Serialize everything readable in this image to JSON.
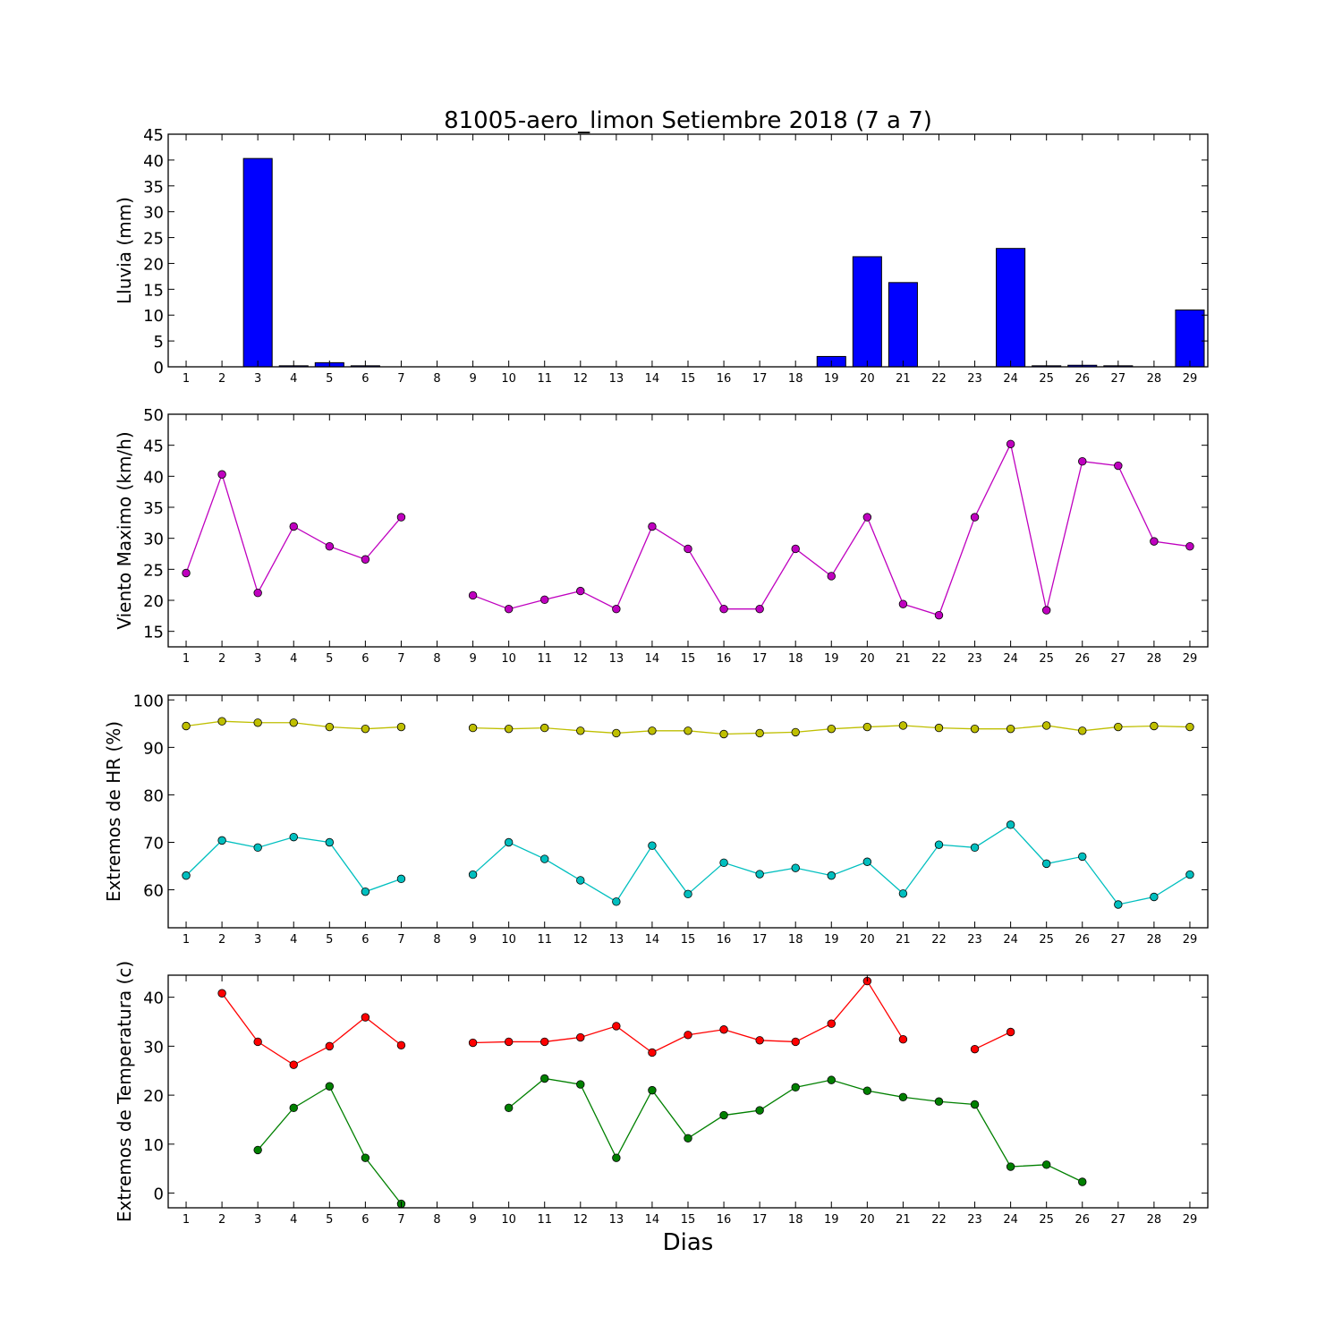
{
  "chart_data": {
    "title": "81005-aero_limon Setiembre 2018  (7 a 7)",
    "xlabel": "Dias",
    "days": [
      1,
      2,
      3,
      4,
      5,
      6,
      7,
      8,
      9,
      10,
      11,
      12,
      13,
      14,
      15,
      16,
      17,
      18,
      19,
      20,
      21,
      22,
      23,
      24,
      25,
      26,
      27,
      28,
      29
    ],
    "panels": [
      {
        "type": "bar",
        "ylabel": "Lluvia (mm)",
        "ylim": [
          0,
          45
        ],
        "yticks": [
          0,
          5,
          10,
          15,
          20,
          25,
          30,
          35,
          40,
          45
        ],
        "series": [
          {
            "color": "#0000ff",
            "values": [
              0,
              0,
              40.3,
              0.2,
              0.8,
              0.2,
              0,
              0,
              0,
              0,
              0,
              0,
              0,
              0,
              0,
              0,
              0,
              0,
              2.0,
              21.3,
              16.3,
              0,
              0,
              22.9,
              0.2,
              0.3,
              0.2,
              0,
              11.0
            ]
          }
        ]
      },
      {
        "type": "line",
        "ylabel": "Viento Maximo (km/h)",
        "ylim": [
          12.5,
          50
        ],
        "yticks": [
          15,
          20,
          25,
          30,
          35,
          40,
          45,
          50
        ],
        "series": [
          {
            "color": "#bf00bf",
            "values": [
              24.4,
              40.3,
              21.2,
              31.9,
              28.7,
              26.6,
              33.4,
              null,
              20.8,
              18.6,
              20.1,
              21.5,
              18.6,
              31.9,
              28.3,
              18.6,
              18.6,
              28.3,
              23.9,
              33.4,
              19.4,
              17.6,
              33.4,
              45.2,
              18.4,
              42.4,
              41.7,
              29.5,
              28.7
            ]
          }
        ]
      },
      {
        "type": "line",
        "ylabel": "Extremos de HR (%)",
        "ylim": [
          52,
          101
        ],
        "yticks": [
          60,
          70,
          80,
          90,
          100
        ],
        "series": [
          {
            "color": "#bfbf00",
            "values": [
              94.5,
              95.5,
              95.2,
              95.2,
              94.3,
              93.9,
              94.3,
              null,
              94.1,
              93.9,
              94.1,
              93.5,
              93.0,
              93.5,
              93.5,
              92.8,
              93.0,
              93.2,
              93.9,
              94.3,
              94.6,
              94.1,
              93.9,
              93.9,
              94.6,
              93.5,
              94.3,
              94.5,
              94.3
            ]
          },
          {
            "color": "#00bfbf",
            "values": [
              63.0,
              70.4,
              68.9,
              71.1,
              70.0,
              59.6,
              62.3,
              null,
              63.2,
              70.0,
              66.5,
              62.0,
              57.5,
              69.3,
              59.1,
              65.7,
              63.3,
              64.6,
              63.0,
              65.9,
              59.2,
              69.5,
              68.9,
              73.7,
              65.5,
              67.0,
              56.9,
              58.5,
              63.2
            ]
          }
        ]
      },
      {
        "type": "line",
        "ylabel": "Extremos de Temperatura (c)",
        "ylim": [
          -3,
          44.5
        ],
        "yticks": [
          0,
          10,
          20,
          30,
          40
        ],
        "series": [
          {
            "color": "#ff0000",
            "values": [
              null,
              40.8,
              30.9,
              26.2,
              30.0,
              35.9,
              30.2,
              null,
              30.7,
              30.9,
              30.9,
              31.8,
              34.1,
              28.7,
              32.3,
              33.4,
              31.2,
              30.9,
              34.6,
              43.3,
              31.4,
              null,
              29.4,
              32.9,
              null,
              null,
              null,
              null,
              null
            ]
          },
          {
            "color": "#008000",
            "values": [
              null,
              null,
              8.8,
              17.4,
              21.8,
              7.2,
              -2.2,
              null,
              null,
              17.4,
              23.4,
              22.2,
              7.2,
              21.0,
              11.2,
              15.9,
              16.9,
              21.6,
              23.1,
              20.9,
              19.6,
              18.7,
              18.1,
              5.4,
              5.8,
              2.3,
              null,
              null,
              null
            ]
          }
        ]
      }
    ]
  }
}
